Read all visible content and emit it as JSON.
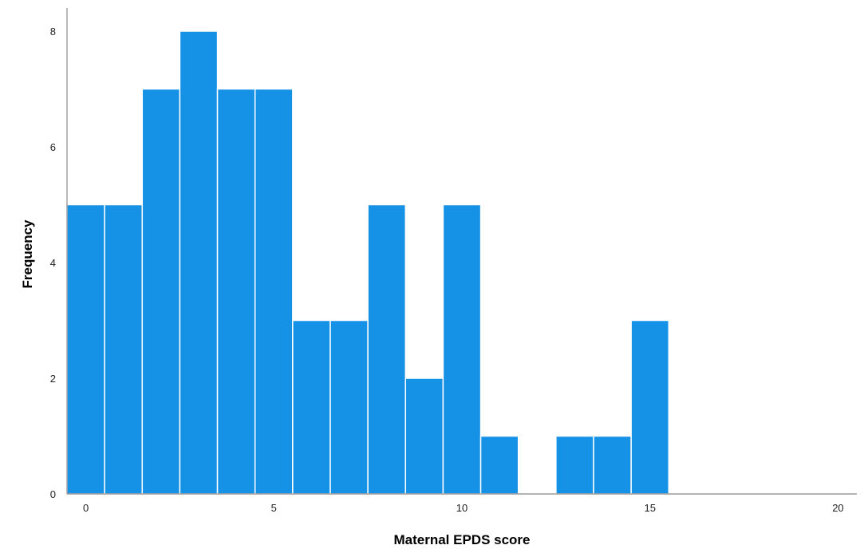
{
  "chart_data": {
    "type": "bar",
    "x_bins": [
      0,
      1,
      2,
      3,
      4,
      5,
      6,
      7,
      8,
      9,
      10,
      11,
      12,
      13,
      14,
      15
    ],
    "values": [
      5,
      5,
      7,
      8,
      7,
      7,
      3,
      3,
      5,
      2,
      5,
      1,
      0,
      1,
      1,
      3
    ],
    "bin_width": 1,
    "xlabel": "Maternal EPDS score",
    "ylabel": "Frequency",
    "xlim": [
      -0.5,
      20.5
    ],
    "ylim": [
      0,
      8.4
    ],
    "x_ticks": [
      "0",
      "5",
      "10",
      "15",
      "20"
    ],
    "y_ticks": [
      "0",
      "2",
      "4",
      "6",
      "8"
    ],
    "grid": false,
    "bar_color": "#1591e6"
  }
}
